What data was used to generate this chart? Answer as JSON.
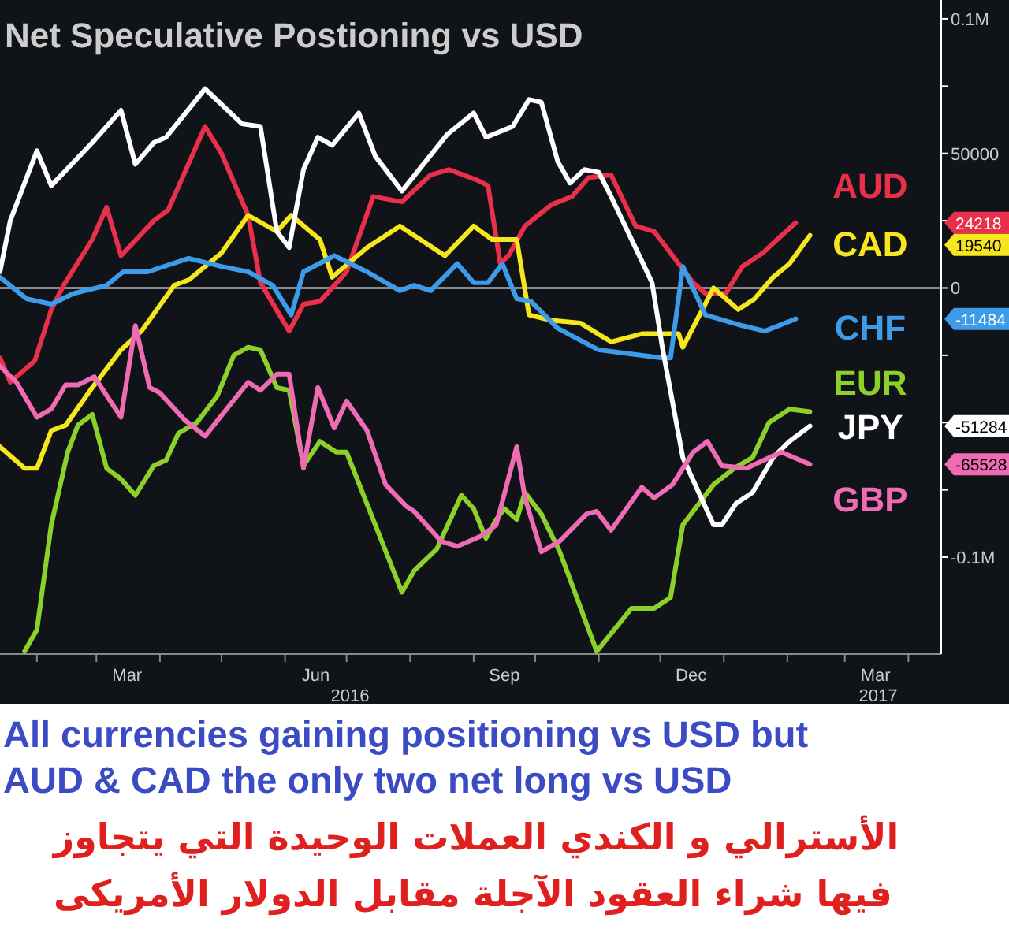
{
  "chart_data": {
    "type": "line",
    "title": "Net Speculative Postioning vs USD",
    "annotations": [
      "2016",
      "2017",
      "All currencies gaining positioning vs USD but",
      "AUD & CAD the only two net long vs USD",
      "الأسترالي و الكندي العملات الوحيدة التي يتجاوز",
      "فيها شراء العقود الآجلة مقابل الدولار الأمريكى",
      "24218",
      "19540",
      "-11484",
      "-51284",
      "-65528"
    ],
    "xlim": [
      "2016-01-14",
      "2017-04-17"
    ],
    "ylim": [
      -136000,
      107000
    ],
    "xticks": [
      {
        "value": "2016-02-01",
        "label": null
      },
      {
        "value": "2016-03-01",
        "label": null
      },
      {
        "value": "2016-04-01",
        "label": null
      },
      {
        "value": "2016-05-01",
        "label": null
      },
      {
        "value": "2016-06-01",
        "label": null
      },
      {
        "value": "2016-07-01",
        "label": null
      },
      {
        "value": "2016-08-01",
        "label": null
      },
      {
        "value": "2016-09-01",
        "label": null
      },
      {
        "value": "2016-10-01",
        "label": null
      },
      {
        "value": "2016-11-01",
        "label": null
      },
      {
        "value": "2016-12-01",
        "label": null
      },
      {
        "value": "2017-01-01",
        "label": null
      },
      {
        "value": "2017-02-01",
        "label": null
      },
      {
        "value": "2017-03-01",
        "label": null
      },
      {
        "value": "2017-04-01",
        "label": null
      },
      {
        "value": "2016-03-16",
        "label": "Mar"
      },
      {
        "value": "2016-06-16",
        "label": "Jun"
      },
      {
        "value": "2016-09-16",
        "label": "Sep"
      },
      {
        "value": "2016-12-16",
        "label": "Dec"
      },
      {
        "value": "2017-03-16",
        "label": "Mar"
      }
    ],
    "yticks": [
      {
        "value": 100000,
        "label": "0.1M"
      },
      {
        "value": 75000,
        "label": null
      },
      50000,
      {
        "value": 25000,
        "label": null
      },
      0,
      {
        "value": -25000,
        "label": null
      },
      {
        "value": -50000,
        "label": null
      },
      {
        "value": -75000,
        "label": null
      },
      {
        "value": -100000,
        "label": "-0.1M"
      }
    ],
    "ref_lines": [
      {
        "axis": "y",
        "value": 0,
        "color": "#ffffff"
      }
    ],
    "marker": "none",
    "line_style": "solid",
    "legend": "right",
    "series": [
      {
        "name": "AUD",
        "color": "#e8304a",
        "x": [
          "2016-01-14",
          "2016-01-19",
          "2016-01-31",
          "2016-02-08",
          "2016-02-14",
          "2016-02-28",
          "2016-03-06",
          "2016-03-13",
          "2016-03-29",
          "2016-04-05",
          "2016-04-23",
          "2016-05-01",
          "2016-05-14",
          "2016-05-20",
          "2016-06-03",
          "2016-06-10",
          "2016-06-18",
          "2016-07-01",
          "2016-07-14",
          "2016-07-28",
          "2016-08-11",
          "2016-08-20",
          "2016-09-03",
          "2016-09-08",
          "2016-09-14",
          "2016-09-18",
          "2016-09-26",
          "2016-10-09",
          "2016-10-19",
          "2016-10-27",
          "2016-11-07",
          "2016-11-19",
          "2016-11-28",
          "2016-12-17",
          "2016-12-23",
          "2017-01-02",
          "2017-01-10",
          "2017-01-20",
          "2017-01-27",
          "2017-02-05"
        ],
        "values": [
          -26000,
          -35000,
          -27000,
          -8000,
          1000,
          18000,
          30000,
          12000,
          25000,
          29000,
          60000,
          50000,
          27000,
          2000,
          -16000,
          -6000,
          -5000,
          6000,
          34000,
          32000,
          42000,
          44000,
          40000,
          38000,
          9000,
          12000,
          23000,
          31000,
          34000,
          41000,
          42000,
          23000,
          21000,
          2000,
          -2000,
          -2000,
          8000,
          13000,
          18000,
          24218
        ]
      },
      {
        "name": "CAD",
        "color": "#f5e61e",
        "x": [
          "2016-01-14",
          "2016-01-26",
          "2016-02-01",
          "2016-02-08",
          "2016-02-15",
          "2016-02-28",
          "2016-03-13",
          "2016-03-23",
          "2016-04-08",
          "2016-04-15",
          "2016-05-01",
          "2016-05-14",
          "2016-05-28",
          "2016-06-04",
          "2016-06-18",
          "2016-06-24",
          "2016-07-11",
          "2016-07-27",
          "2016-08-06",
          "2016-08-18",
          "2016-09-01",
          "2016-09-10",
          "2016-09-22",
          "2016-09-28",
          "2016-10-09",
          "2016-10-23",
          "2016-11-07",
          "2016-11-22",
          "2016-12-10",
          "2016-12-12",
          "2016-12-27",
          "2017-01-08",
          "2017-01-16",
          "2017-01-25",
          "2017-02-02",
          "2017-02-12"
        ],
        "values": [
          -59000,
          -67000,
          -67000,
          -53000,
          -51000,
          -37000,
          -23000,
          -16000,
          1000,
          3000,
          13000,
          27000,
          21000,
          27000,
          18000,
          4000,
          15000,
          23000,
          18000,
          12000,
          23000,
          18000,
          18000,
          -10000,
          -12000,
          -13000,
          -20000,
          -17000,
          -17000,
          -22000,
          0,
          -8000,
          -4000,
          4000,
          9000,
          19540
        ]
      },
      {
        "name": "CHF",
        "color": "#3d9be9",
        "x": [
          "2016-01-14",
          "2016-01-27",
          "2016-02-08",
          "2016-02-19",
          "2016-03-06",
          "2016-03-14",
          "2016-03-26",
          "2016-04-15",
          "2016-05-01",
          "2016-05-14",
          "2016-05-26",
          "2016-06-04",
          "2016-06-10",
          "2016-06-25",
          "2016-07-11",
          "2016-07-27",
          "2016-08-03",
          "2016-08-11",
          "2016-08-24",
          "2016-09-01",
          "2016-09-08",
          "2016-09-15",
          "2016-09-22",
          "2016-09-29",
          "2016-10-12",
          "2016-11-01",
          "2016-12-02",
          "2016-12-06",
          "2016-12-12",
          "2016-12-23",
          "2017-01-10",
          "2017-01-21",
          "2017-02-05"
        ],
        "values": [
          4000,
          -4000,
          -6000,
          -2000,
          1000,
          6000,
          6000,
          11000,
          8000,
          6000,
          1000,
          -10000,
          6000,
          12000,
          6000,
          -1000,
          1000,
          -1000,
          9000,
          2000,
          2000,
          9000,
          -4000,
          -5000,
          -15000,
          -23000,
          -26000,
          -26000,
          8000,
          -10000,
          -14000,
          -16000,
          -11484
        ]
      },
      {
        "name": "EUR",
        "color": "#8bd12a",
        "x": [
          "2016-01-26",
          "2016-02-01",
          "2016-02-08",
          "2016-02-16",
          "2016-02-21",
          "2016-02-28",
          "2016-03-06",
          "2016-03-13",
          "2016-03-20",
          "2016-03-29",
          "2016-04-04",
          "2016-04-10",
          "2016-04-19",
          "2016-04-29",
          "2016-05-07",
          "2016-05-14",
          "2016-05-20",
          "2016-05-28",
          "2016-06-03",
          "2016-06-10",
          "2016-06-18",
          "2016-06-26",
          "2016-07-01",
          "2016-07-28",
          "2016-08-03",
          "2016-08-14",
          "2016-08-26",
          "2016-09-01",
          "2016-09-07",
          "2016-09-12",
          "2016-09-16",
          "2016-09-22",
          "2016-09-26",
          "2016-10-04",
          "2016-10-13",
          "2016-10-31",
          "2016-11-17",
          "2016-11-28",
          "2016-12-06",
          "2016-12-12",
          "2016-12-27",
          "2017-01-06",
          "2017-01-15",
          "2017-01-23",
          "2017-02-02",
          "2017-02-12"
        ],
        "values": [
          -135000,
          -127000,
          -88000,
          -61000,
          -51000,
          -47000,
          -67000,
          -71000,
          -77000,
          -66000,
          -64000,
          -54000,
          -50000,
          -40000,
          -25000,
          -22000,
          -23000,
          -37000,
          -38000,
          -66000,
          -57000,
          -61000,
          -61000,
          -113000,
          -105000,
          -97000,
          -77000,
          -82000,
          -93000,
          -86000,
          -82000,
          -86000,
          -76000,
          -84000,
          -98000,
          -135000,
          -119000,
          -119000,
          -115000,
          -88000,
          -73000,
          -67000,
          -63000,
          -50000,
          -45000,
          -46000
        ]
      },
      {
        "name": "JPY",
        "color": "#ffffff",
        "x": [
          "2016-01-14",
          "2016-01-19",
          "2016-02-01",
          "2016-02-08",
          "2016-02-28",
          "2016-03-13",
          "2016-03-20",
          "2016-03-29",
          "2016-04-04",
          "2016-04-23",
          "2016-05-11",
          "2016-05-20",
          "2016-05-28",
          "2016-06-03",
          "2016-06-10",
          "2016-06-17",
          "2016-06-24",
          "2016-07-07",
          "2016-07-15",
          "2016-07-28",
          "2016-08-19",
          "2016-09-01",
          "2016-09-07",
          "2016-09-20",
          "2016-09-28",
          "2016-10-04",
          "2016-10-12",
          "2016-10-18",
          "2016-10-25",
          "2016-11-01",
          "2016-11-07",
          "2016-11-27",
          "2016-12-02",
          "2016-12-12",
          "2016-12-27",
          "2016-12-31",
          "2017-01-07",
          "2017-01-15",
          "2017-01-25",
          "2017-02-02",
          "2017-02-12"
        ],
        "values": [
          6000,
          25000,
          51000,
          38000,
          54000,
          66000,
          46000,
          54000,
          56000,
          74000,
          61000,
          60000,
          21000,
          15000,
          44000,
          56000,
          53000,
          65000,
          49000,
          36000,
          57000,
          65000,
          56000,
          60000,
          70000,
          69000,
          47000,
          39000,
          44000,
          43000,
          34000,
          2000,
          -22000,
          -63000,
          -88000,
          -88000,
          -80000,
          -76000,
          -63000,
          -57000,
          -51284
        ]
      },
      {
        "name": "GBP",
        "color": "#ef6bb4",
        "x": [
          "2016-01-14",
          "2016-01-22",
          "2016-02-01",
          "2016-02-08",
          "2016-02-15",
          "2016-02-21",
          "2016-02-29",
          "2016-03-13",
          "2016-03-20",
          "2016-03-27",
          "2016-04-01",
          "2016-04-13",
          "2016-04-23",
          "2016-05-14",
          "2016-05-20",
          "2016-05-28",
          "2016-06-03",
          "2016-06-10",
          "2016-06-17",
          "2016-06-25",
          "2016-07-01",
          "2016-07-11",
          "2016-07-20",
          "2016-07-30",
          "2016-08-03",
          "2016-08-16",
          "2016-08-24",
          "2016-09-05",
          "2016-09-12",
          "2016-09-22",
          "2016-09-26",
          "2016-10-04",
          "2016-10-13",
          "2016-10-26",
          "2016-10-31",
          "2016-11-07",
          "2016-11-22",
          "2016-11-28",
          "2016-12-07",
          "2016-12-17",
          "2016-12-24",
          "2016-12-31",
          "2017-01-12",
          "2017-01-29",
          "2017-02-12"
        ],
        "values": [
          -29000,
          -35000,
          -48000,
          -45000,
          -36000,
          -36000,
          -33000,
          -48000,
          -14000,
          -37000,
          -39000,
          -49000,
          -55000,
          -35000,
          -38000,
          -32000,
          -32000,
          -67000,
          -37000,
          -52000,
          -42000,
          -53000,
          -73000,
          -81000,
          -83000,
          -94000,
          -96000,
          -92000,
          -88000,
          -59000,
          -78000,
          -98000,
          -94000,
          -84000,
          -83000,
          -90000,
          -74000,
          -78000,
          -73000,
          -61000,
          -57000,
          -66000,
          -67000,
          -61000,
          -65528
        ]
      }
    ]
  }
}
